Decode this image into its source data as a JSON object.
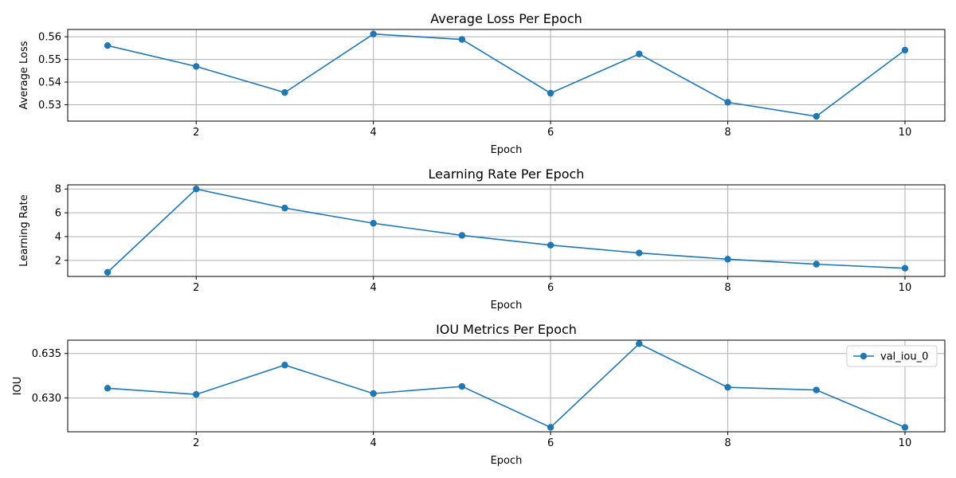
{
  "chart_data": [
    {
      "type": "line",
      "title": "Average Loss Per Epoch",
      "xlabel": "Epoch",
      "ylabel": "Average Loss",
      "xlim": [
        0.55,
        10.45
      ],
      "ylim": [
        0.5228,
        0.5632
      ],
      "xticks": [
        2,
        4,
        6,
        8,
        10
      ],
      "yticks": [
        0.53,
        0.54,
        0.55,
        0.56
      ],
      "ytick_labels": [
        "0.53",
        "0.54",
        "0.55",
        "0.56"
      ],
      "grid": true,
      "legend": null,
      "color": "#1f77b4",
      "series": [
        {
          "name": "",
          "x": [
            1,
            2,
            3,
            4,
            5,
            6,
            7,
            8,
            9,
            10
          ],
          "values": [
            0.5561,
            0.5469,
            0.5354,
            0.5612,
            0.5588,
            0.5351,
            0.5524,
            0.5311,
            0.5249,
            0.5541
          ]
        }
      ]
    },
    {
      "type": "line",
      "title": "Learning Rate Per Epoch",
      "xlabel": "Epoch",
      "ylabel": "Learning Rate",
      "xlim": [
        0.55,
        10.45
      ],
      "ylim": [
        0.65,
        8.35
      ],
      "xticks": [
        2,
        4,
        6,
        8,
        10
      ],
      "yticks": [
        2,
        4,
        6,
        8
      ],
      "ytick_labels": [
        "2",
        "4",
        "6",
        "8"
      ],
      "grid": true,
      "legend": null,
      "color": "#1f77b4",
      "series": [
        {
          "name": "",
          "x": [
            1,
            2,
            3,
            4,
            5,
            6,
            7,
            8,
            9,
            10
          ],
          "values": [
            1.0,
            8.0,
            6.4,
            5.12,
            4.1,
            3.28,
            2.62,
            2.1,
            1.68,
            1.34
          ]
        }
      ]
    },
    {
      "type": "line",
      "title": "IOU Metrics Per Epoch",
      "xlabel": "Epoch",
      "ylabel": "IOU",
      "xlim": [
        0.55,
        10.45
      ],
      "ylim": [
        0.6262,
        0.6365
      ],
      "xticks": [
        2,
        4,
        6,
        8,
        10
      ],
      "yticks": [
        0.63,
        0.635
      ],
      "ytick_labels": [
        "0.630",
        "0.635"
      ],
      "grid": true,
      "legend": "top-right",
      "color": "#1f77b4",
      "series": [
        {
          "name": "val_iou_0",
          "x": [
            1,
            2,
            3,
            4,
            5,
            6,
            7,
            8,
            9,
            10
          ],
          "values": [
            0.6311,
            0.6304,
            0.6337,
            0.6305,
            0.6313,
            0.6267,
            0.6361,
            0.6312,
            0.6309,
            0.6267
          ]
        }
      ]
    }
  ]
}
